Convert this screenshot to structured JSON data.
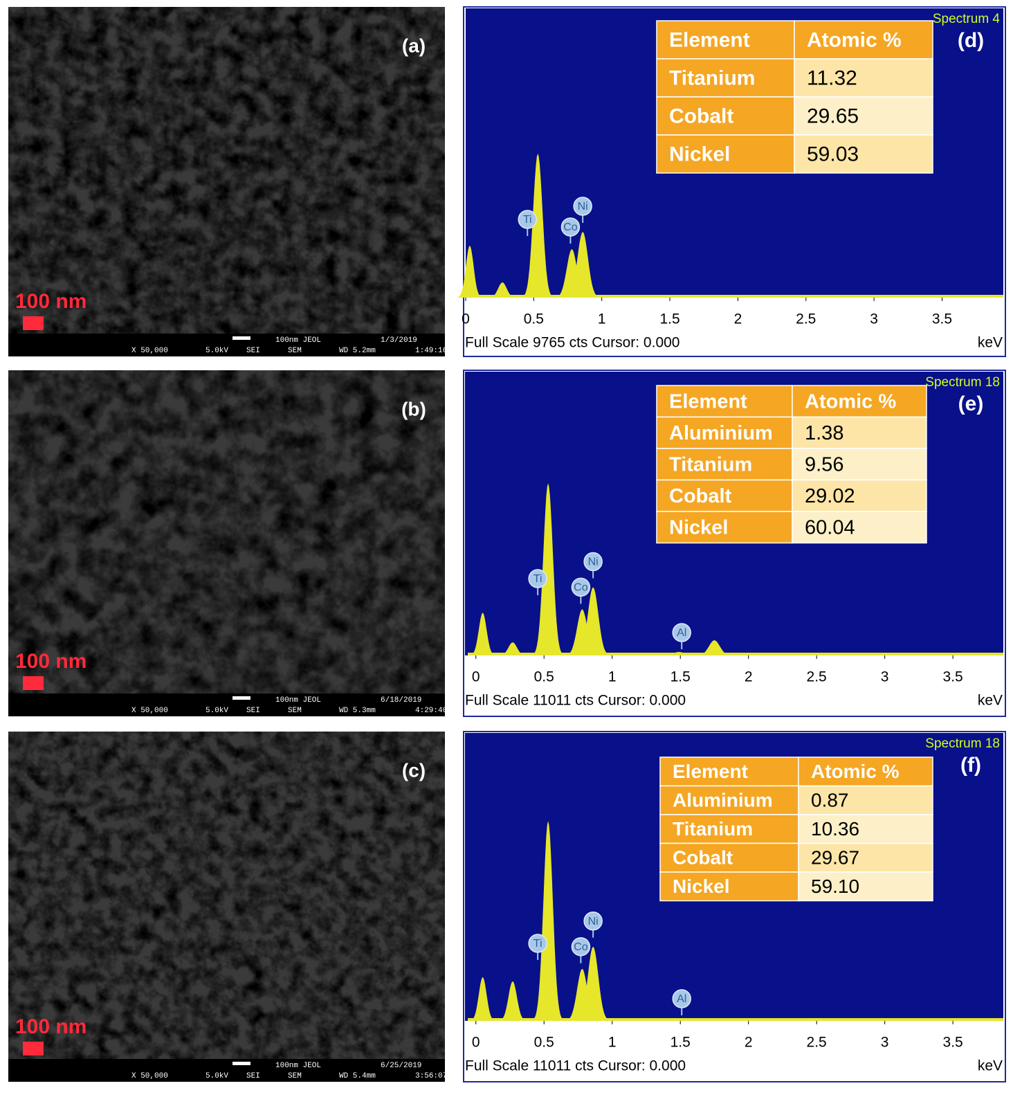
{
  "panels": [
    {
      "sem": {
        "label": "(a)",
        "scale_text": "100 nm",
        "info_top": [
          "100nm JEOL",
          "1/3/2019"
        ],
        "info_bottom": [
          "X 50,000",
          "5.0kV",
          "SEI",
          "SEM",
          "WD 5.2mm",
          "1:49:16"
        ]
      },
      "eds": {
        "label": "(d)",
        "spectrum": "Spectrum 4",
        "footer": "Full Scale 9765 cts Cursor: 0.000",
        "unit": "keV",
        "table": {
          "header": [
            "Element",
            "Atomic %"
          ],
          "rows": [
            [
              "Titanium",
              "11.32"
            ],
            [
              "Cobalt",
              "29.65"
            ],
            [
              "Nickel",
              "59.03"
            ]
          ]
        },
        "xlim": [
          0,
          3.95
        ],
        "ylim": [
          0,
          9765
        ],
        "xticks": [
          0,
          0.5,
          1,
          1.5,
          2,
          2.5,
          3,
          3.5
        ],
        "peaks": [
          {
            "x": 0.03,
            "counts": 1752
          },
          {
            "x": 0.27,
            "counts": 514
          },
          {
            "x": 0.53,
            "counts": 4860,
            "label": "Ti"
          },
          {
            "x": 0.78,
            "counts": 1635,
            "label": "Co"
          },
          {
            "x": 0.86,
            "counts": 2220,
            "label": "Ni"
          }
        ]
      }
    },
    {
      "sem": {
        "label": "(b)",
        "scale_text": "100 nm",
        "info_top": [
          "100nm JEOL",
          "6/18/2019"
        ],
        "info_bottom": [
          "X 50,000",
          "5.0kV",
          "SEI",
          "SEM",
          "WD 5.3mm",
          "4:29:40"
        ]
      },
      "eds": {
        "label": "(e)",
        "spectrum": "Spectrum 18",
        "footer": "Full Scale 11011 cts Cursor: 0.000",
        "unit": "keV",
        "table": {
          "header": [
            "Element",
            "Atomic %"
          ],
          "rows": [
            [
              "Aluminium",
              "1.38"
            ],
            [
              "Titanium",
              "9.56"
            ],
            [
              "Cobalt",
              "29.02"
            ],
            [
              "Nickel",
              "60.04"
            ]
          ]
        },
        "xlim": [
          -0.08,
          3.87
        ],
        "ylim": [
          0,
          11011
        ],
        "xticks": [
          0,
          0.5,
          1,
          1.5,
          2,
          2.5,
          3,
          3.5
        ],
        "peaks": [
          {
            "x": 0.05,
            "counts": 1657
          },
          {
            "x": 0.27,
            "counts": 508
          },
          {
            "x": 0.53,
            "counts": 6681,
            "label": "Ti"
          },
          {
            "x": 0.78,
            "counts": 1790,
            "label": "Co"
          },
          {
            "x": 0.86,
            "counts": 2646,
            "label": "Ni"
          },
          {
            "x": 1.49,
            "counts": 134,
            "label": "Al"
          },
          {
            "x": 1.75,
            "counts": 588
          }
        ]
      }
    },
    {
      "sem": {
        "label": "(c)",
        "scale_text": "100 nm",
        "info_top": [
          "100nm JEOL",
          "6/25/2019"
        ],
        "info_bottom": [
          "X 50,000",
          "5.0kV",
          "SEI",
          "SEM",
          "WD 5.4mm",
          "3:56:07"
        ]
      },
      "eds": {
        "label": "(f)",
        "spectrum": "Spectrum 18",
        "footer": "Full Scale 11011 cts Cursor: 0.000",
        "unit": "keV",
        "table": {
          "header": [
            "Element",
            "Atomic %"
          ],
          "rows": [
            [
              "Aluminium",
              "0.87"
            ],
            [
              "Titanium",
              "10.36"
            ],
            [
              "Cobalt",
              "29.67"
            ],
            [
              "Nickel",
              "59.10"
            ]
          ]
        },
        "xlim": [
          -0.08,
          3.87
        ],
        "ylim": [
          0,
          11011
        ],
        "xticks": [
          0,
          0.5,
          1,
          1.5,
          2,
          2.5,
          3,
          3.5
        ],
        "peaks": [
          {
            "x": 0.05,
            "counts": 1672
          },
          {
            "x": 0.27,
            "counts": 1512
          },
          {
            "x": 0.53,
            "counts": 7641,
            "label": "Ti"
          },
          {
            "x": 0.78,
            "counts": 1990,
            "label": "Co"
          },
          {
            "x": 0.86,
            "counts": 2839,
            "label": "Ni"
          },
          {
            "x": 1.49,
            "counts": 106,
            "label": "Al"
          }
        ]
      }
    }
  ]
}
